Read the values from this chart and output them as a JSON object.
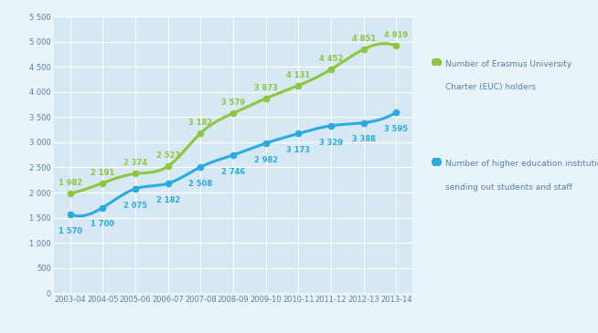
{
  "years": [
    "2003-04",
    "2004-05",
    "2005-06",
    "2006-07",
    "2007-08",
    "2008-09",
    "2009-10",
    "2010-11",
    "2011-12",
    "2012-13",
    "2013-14"
  ],
  "euc_values": [
    1982,
    2191,
    2374,
    2523,
    3182,
    3579,
    3873,
    4131,
    4452,
    4851,
    4919
  ],
  "hei_values": [
    1570,
    1700,
    2075,
    2182,
    2508,
    2746,
    2982,
    3173,
    3329,
    3388,
    3595
  ],
  "euc_color": "#8dc63f",
  "hei_color": "#29abe2",
  "euc_label_line1": "Number of Erasmus University",
  "euc_label_line2": "Charter (EUC) holders",
  "hei_label_line1": "Number of higher education institutions",
  "hei_label_line2": "sending out students and staff",
  "bg_color": "#d6e8f4",
  "fig_bg_color": "#e8f3fa",
  "ylim": [
    0,
    5500
  ],
  "ytick_vals": [
    0,
    500,
    1000,
    1500,
    2000,
    2500,
    3000,
    3500,
    4000,
    4500,
    5000,
    5500
  ],
  "grid_color": "#ffffff",
  "tick_label_color": "#5a7fa8",
  "annotation_color_euc": "#8dc63f",
  "annotation_color_hei": "#29abe2",
  "line_width": 2.2,
  "marker_size": 4.5,
  "annot_fontsize": 6.0
}
